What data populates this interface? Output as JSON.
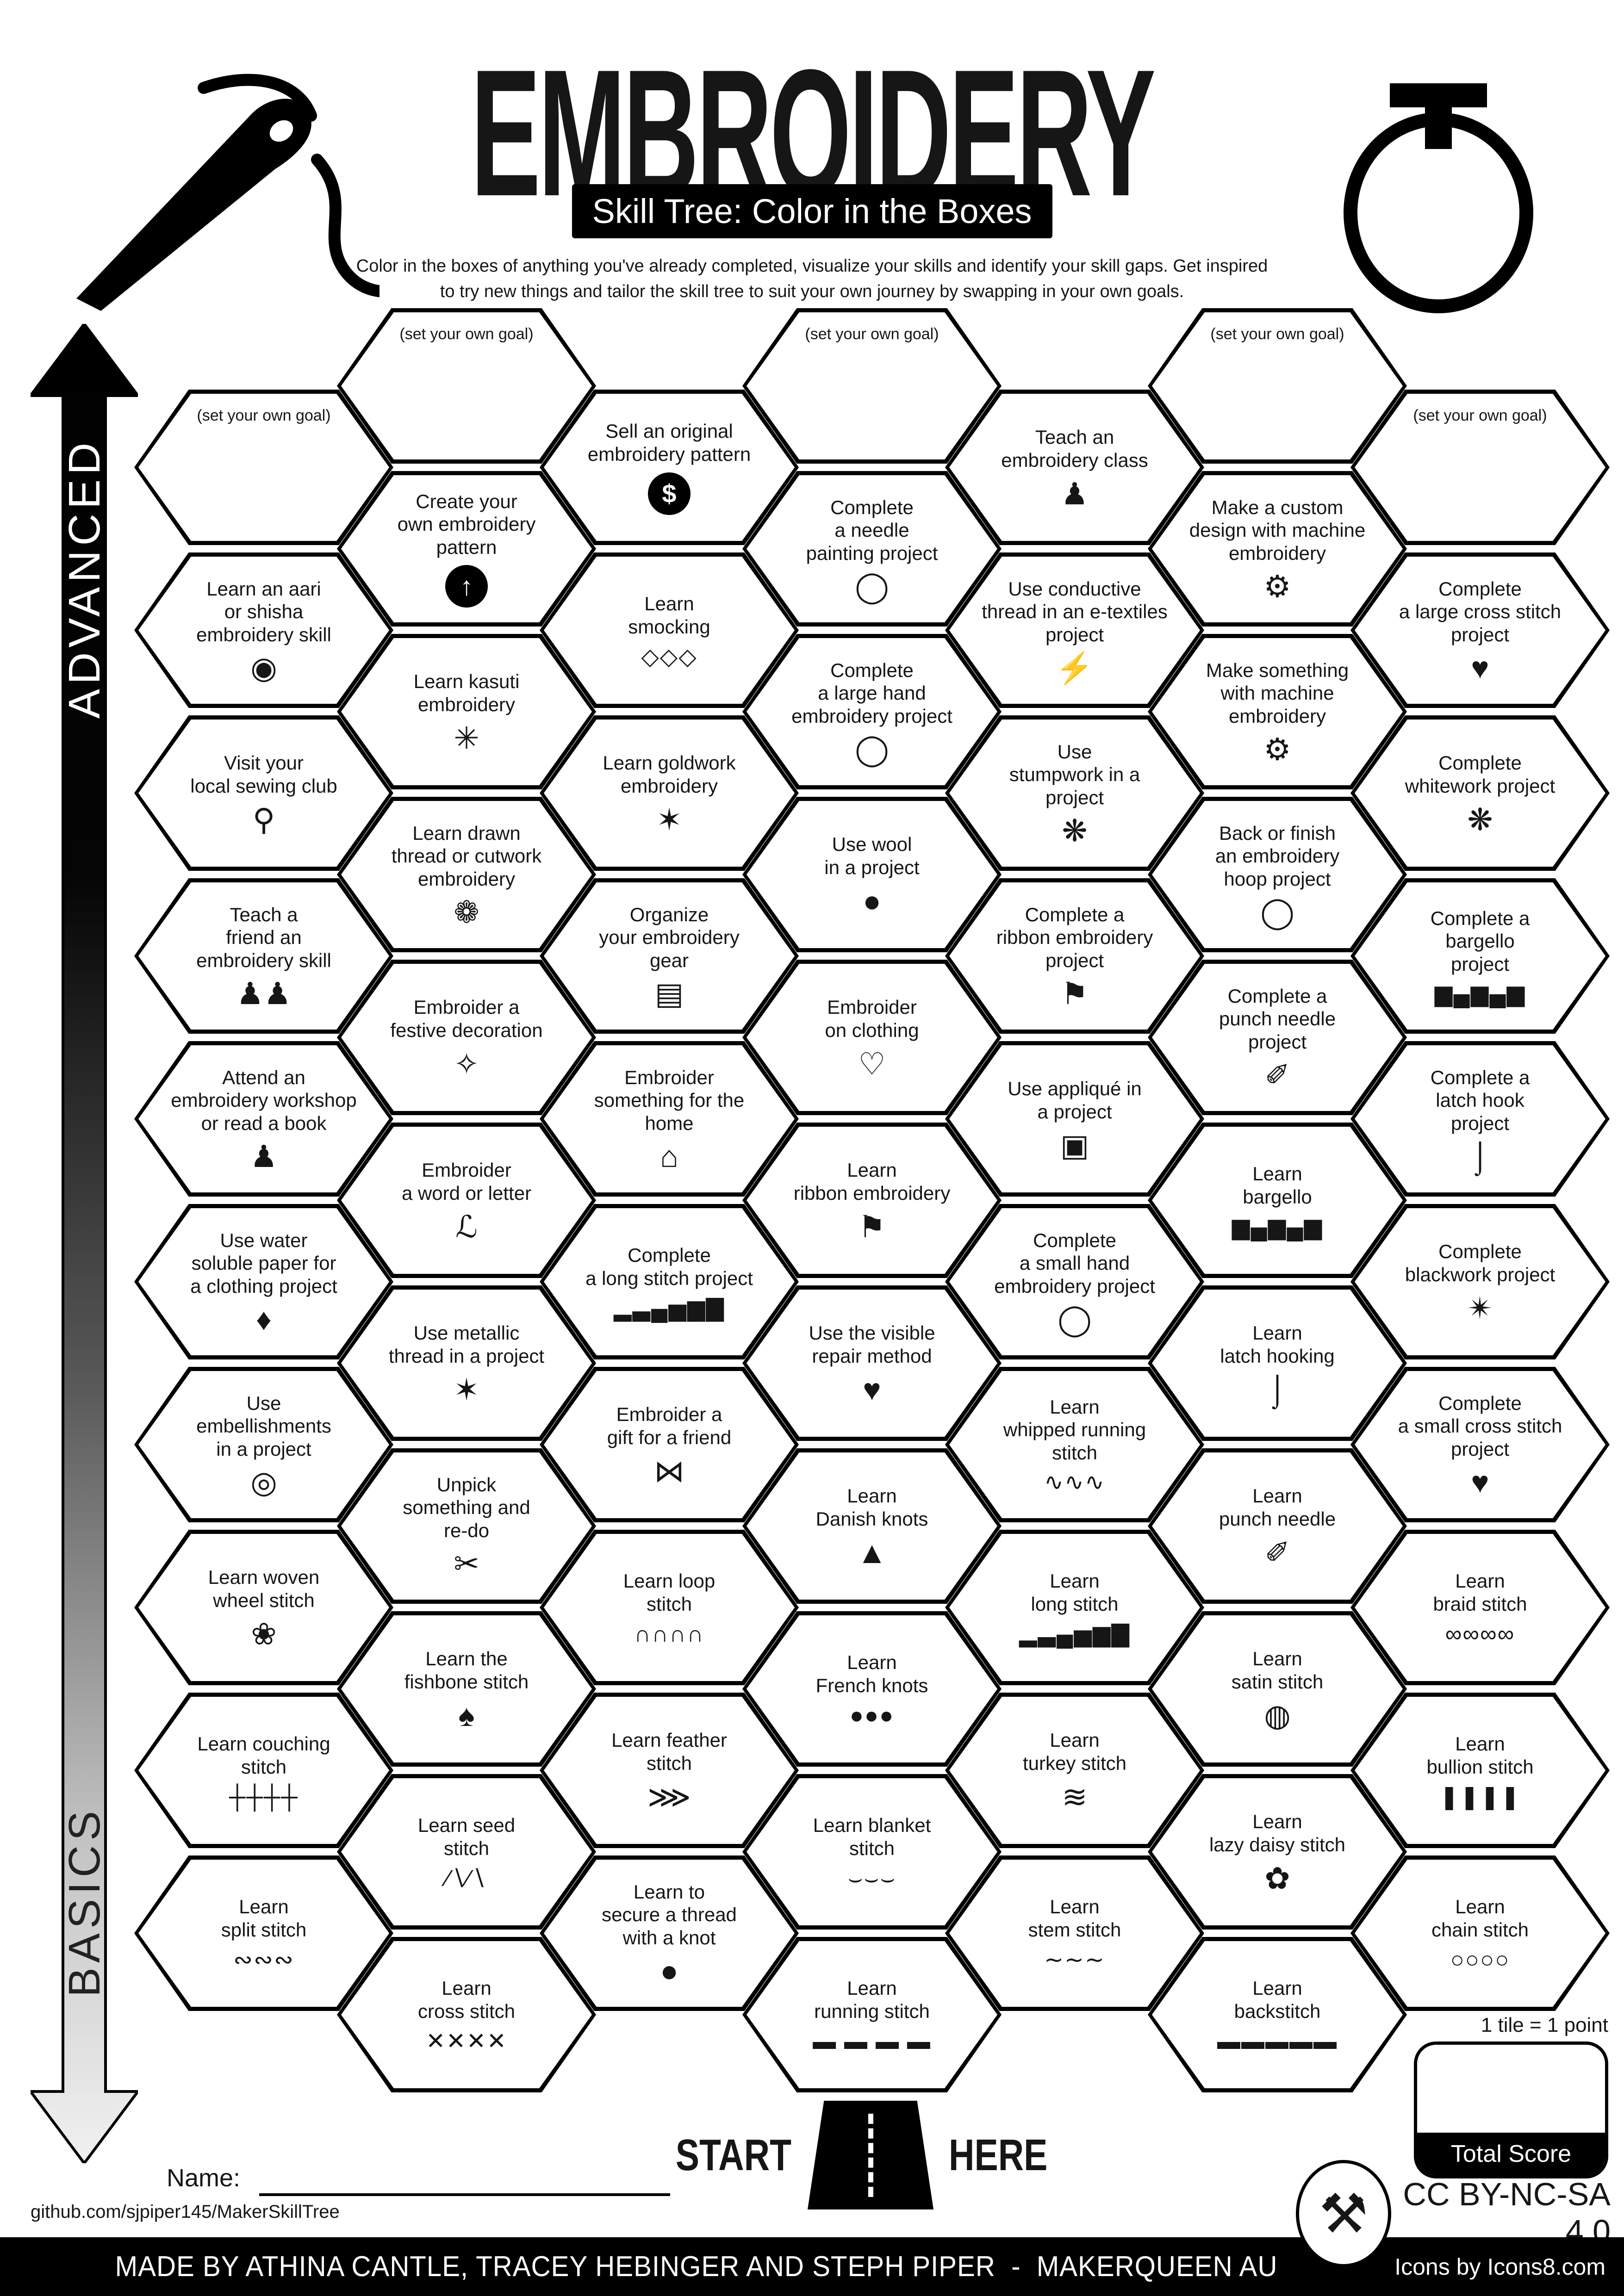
{
  "header": {
    "title": "EMBROIDERY",
    "subtitle": "Skill Tree: Color in the Boxes",
    "description": "Color in the boxes of anything you've already completed, visualize your skills and identify your skill gaps.  Get inspired\nto try new things and tailor the skill tree to suit your own journey by swapping in your own goals."
  },
  "axis": {
    "advanced": "ADVANCED",
    "basics": "BASICS"
  },
  "grid": {
    "goal_label": "(set your own goal)",
    "hexes": [
      {
        "col": 0,
        "row": 0,
        "label": "(set your own goal)",
        "icon": null
      },
      {
        "col": 0,
        "row": 1,
        "label": "Learn an aari\nor shisha\nembroidery skill",
        "icon": "shisha-mirror-icon"
      },
      {
        "col": 0,
        "row": 2,
        "label": "Visit your\nlocal sewing club",
        "icon": "map-pin-icon"
      },
      {
        "col": 0,
        "row": 3,
        "label": "Teach a\nfriend an\nembroidery skill",
        "icon": "friends-teaching-icon"
      },
      {
        "col": 0,
        "row": 4,
        "label": "Attend an\nembroidery workshop\nor read a book",
        "icon": "presenter-icon"
      },
      {
        "col": 0,
        "row": 5,
        "label": "Use water\nsoluble paper for\na clothing project",
        "icon": "water-drop-icon"
      },
      {
        "col": 0,
        "row": 6,
        "label": "Use\nembellishments\nin a project",
        "icon": "button-icon"
      },
      {
        "col": 0,
        "row": 7,
        "label": "Learn woven\nwheel stitch",
        "icon": "rose-icon"
      },
      {
        "col": 0,
        "row": 8,
        "label": "Learn couching\nstitch",
        "icon": "couching-stitch-icon"
      },
      {
        "col": 0,
        "row": 9,
        "label": "Learn\nsplit stitch",
        "icon": "split-stitch-icon"
      },
      {
        "col": 1,
        "row": 0,
        "label": "(set your own goal)",
        "icon": null
      },
      {
        "col": 1,
        "row": 1,
        "label": "Create your\nown embroidery\npattern",
        "icon": "arrow-up-circle-icon"
      },
      {
        "col": 1,
        "row": 2,
        "label": "Learn kasuti\nembroidery",
        "icon": "kasuti-motif-icon"
      },
      {
        "col": 1,
        "row": 3,
        "label": "Learn drawn\nthread or cutwork\nembroidery",
        "icon": "cutwork-motif-icon"
      },
      {
        "col": 1,
        "row": 4,
        "label": "Embroider a\nfestive decoration",
        "icon": "ornament-swirl-icon"
      },
      {
        "col": 1,
        "row": 5,
        "label": "Embroider\na word or letter",
        "icon": "script-letter-icon"
      },
      {
        "col": 1,
        "row": 6,
        "label": "Use metallic\nthread in a project",
        "icon": "metallic-thread-icon"
      },
      {
        "col": 1,
        "row": 7,
        "label": "Unpick\nsomething and\nre-do",
        "icon": "seam-ripper-icon"
      },
      {
        "col": 1,
        "row": 8,
        "label": "Learn the\nfishbone stitch",
        "icon": "fishbone-leaf-icon"
      },
      {
        "col": 1,
        "row": 9,
        "label": "Learn seed\nstitch",
        "icon": "seed-stitch-icon"
      },
      {
        "col": 1,
        "row": 10,
        "label": "Learn\ncross stitch",
        "icon": "cross-stitch-icon"
      },
      {
        "col": 2,
        "row": 0,
        "label": "Sell an original\nembroidery pattern",
        "icon": "dollar-circle-icon"
      },
      {
        "col": 2,
        "row": 1,
        "label": "Learn\nsmocking",
        "icon": "smocking-lattice-icon"
      },
      {
        "col": 2,
        "row": 2,
        "label": "Learn goldwork\nembroidery",
        "icon": "goldwork-needle-icon"
      },
      {
        "col": 2,
        "row": 3,
        "label": "Organize\nyour embroidery\ngear",
        "icon": "storage-drawer-icon"
      },
      {
        "col": 2,
        "row": 4,
        "label": "Embroider\nsomething for the\nhome",
        "icon": "house-icon"
      },
      {
        "col": 2,
        "row": 5,
        "label": "Complete\na long stitch project",
        "icon": "long-stitch-icon"
      },
      {
        "col": 2,
        "row": 6,
        "label": "Embroider a\ngift for a friend",
        "icon": "gift-bow-icon"
      },
      {
        "col": 2,
        "row": 7,
        "label": "Learn loop\nstitch",
        "icon": "loop-stitch-icon"
      },
      {
        "col": 2,
        "row": 8,
        "label": "Learn feather\nstitch",
        "icon": "feather-stitch-icon"
      },
      {
        "col": 2,
        "row": 9,
        "label": "Learn to\nsecure a thread\nwith a knot",
        "icon": "knot-dot-icon"
      },
      {
        "col": 3,
        "row": 0,
        "label": "(set your own goal)",
        "icon": null
      },
      {
        "col": 3,
        "row": 1,
        "label": "Complete\na needle\npainting project",
        "icon": "hoop-needle-icon"
      },
      {
        "col": 3,
        "row": 2,
        "label": "Complete\na large hand\nembroidery project",
        "icon": "hoop-needle-icon"
      },
      {
        "col": 3,
        "row": 3,
        "label": "Use wool\nin a project",
        "icon": "yarn-ball-icon"
      },
      {
        "col": 3,
        "row": 4,
        "label": "Embroider\non clothing",
        "icon": "tshirt-heart-icon"
      },
      {
        "col": 3,
        "row": 5,
        "label": "Learn\nribbon embroidery",
        "icon": "ribbon-bookmark-icon"
      },
      {
        "col": 3,
        "row": 6,
        "label": "Use the visible\nrepair method",
        "icon": "mended-heart-icon"
      },
      {
        "col": 3,
        "row": 7,
        "label": "Learn\nDanish knots",
        "icon": "danish-knot-icon"
      },
      {
        "col": 3,
        "row": 8,
        "label": "Learn\nFrench knots",
        "icon": "french-knots-icon"
      },
      {
        "col": 3,
        "row": 9,
        "label": "Learn blanket\nstitch",
        "icon": "blanket-stitch-icon"
      },
      {
        "col": 3,
        "row": 10,
        "label": "Learn\nrunning stitch",
        "icon": "running-stitch-icon"
      },
      {
        "col": 4,
        "row": 0,
        "label": "Teach an\nembroidery class",
        "icon": "presenter-icon"
      },
      {
        "col": 4,
        "row": 1,
        "label": "Use conductive\nthread in an e-textiles\nproject",
        "icon": "led-icon"
      },
      {
        "col": 4,
        "row": 2,
        "label": "Use\nstumpwork in a\nproject",
        "icon": "bee-icon"
      },
      {
        "col": 4,
        "row": 3,
        "label": "Complete a\nribbon embroidery\nproject",
        "icon": "ribbon-bookmark-icon"
      },
      {
        "col": 4,
        "row": 4,
        "label": "Use appliqué in\na project",
        "icon": "applique-patch-icon"
      },
      {
        "col": 4,
        "row": 5,
        "label": "Complete\na small hand\nembroidery project",
        "icon": "hoop-needle-icon"
      },
      {
        "col": 4,
        "row": 6,
        "label": "Learn\nwhipped running\nstitch",
        "icon": "whipped-running-stitch-icon"
      },
      {
        "col": 4,
        "row": 7,
        "label": "Learn\nlong stitch",
        "icon": "long-stitch-icon"
      },
      {
        "col": 4,
        "row": 8,
        "label": "Learn\nturkey stitch",
        "icon": "turkey-stitch-icon"
      },
      {
        "col": 4,
        "row": 9,
        "label": "Learn\nstem stitch",
        "icon": "stem-stitch-icon"
      },
      {
        "col": 5,
        "row": 0,
        "label": "(set your own goal)",
        "icon": null
      },
      {
        "col": 5,
        "row": 1,
        "label": "Make a custom\ndesign with machine\nembroidery",
        "icon": "sewing-machine-icon"
      },
      {
        "col": 5,
        "row": 2,
        "label": "Make something\nwith machine\nembroidery",
        "icon": "sewing-machine-icon"
      },
      {
        "col": 5,
        "row": 3,
        "label": "Back or finish\nan embroidery\nhoop project",
        "icon": "hoop-needle-icon"
      },
      {
        "col": 5,
        "row": 4,
        "label": "Complete a\npunch needle\nproject",
        "icon": "punch-needle-icon"
      },
      {
        "col": 5,
        "row": 5,
        "label": "Learn\nbargello",
        "icon": "bargello-pattern-icon"
      },
      {
        "col": 5,
        "row": 6,
        "label": "Learn\nlatch hooking",
        "icon": "latch-hook-icon"
      },
      {
        "col": 5,
        "row": 7,
        "label": "Learn\npunch needle",
        "icon": "punch-needle-icon"
      },
      {
        "col": 5,
        "row": 8,
        "label": "Learn\nsatin stitch",
        "icon": "satin-stitch-icon"
      },
      {
        "col": 5,
        "row": 9,
        "label": "Learn\nlazy daisy stitch",
        "icon": "daisy-icon"
      },
      {
        "col": 5,
        "row": 10,
        "label": "Learn\nbackstitch",
        "icon": "backstitch-icon"
      },
      {
        "col": 6,
        "row": 0,
        "label": "(set your own goal)",
        "icon": null
      },
      {
        "col": 6,
        "row": 1,
        "label": "Complete\na large cross stitch\nproject",
        "icon": "cross-stitch-heart-icon"
      },
      {
        "col": 6,
        "row": 2,
        "label": "Complete\nwhitework project",
        "icon": "bee-icon"
      },
      {
        "col": 6,
        "row": 3,
        "label": "Complete a\nbargello\nproject",
        "icon": "bargello-pattern-icon"
      },
      {
        "col": 6,
        "row": 4,
        "label": "Complete a\nlatch hook\nproject",
        "icon": "latch-hook-icon"
      },
      {
        "col": 6,
        "row": 5,
        "label": "Complete\nblackwork project",
        "icon": "blackwork-star-icon"
      },
      {
        "col": 6,
        "row": 6,
        "label": "Complete\na small cross stitch\nproject",
        "icon": "cross-stitch-heart-icon"
      },
      {
        "col": 6,
        "row": 7,
        "label": "Learn\nbraid stitch",
        "icon": "braid-stitch-icon"
      },
      {
        "col": 6,
        "row": 8,
        "label": "Learn\nbullion stitch",
        "icon": "bullion-stitch-icon"
      },
      {
        "col": 6,
        "row": 9,
        "label": "Learn\nchain stitch",
        "icon": "chain-stitch-icon"
      }
    ]
  },
  "footer": {
    "start_label": "START",
    "here_label": "HERE",
    "tile_point": "1 tile = 1 point",
    "total_score": "Total Score",
    "name_label": "Name:",
    "github": "github.com/sjpiper145/MakerSkillTree",
    "license": "CC BY-NC-SA 4.0",
    "credit": "MADE BY ATHINA CANTLE, TRACEY HEBINGER AND STEPH PIPER  -  MAKERQUEEN AU",
    "icons_credit": "Icons by Icons8.com"
  },
  "icon_glyphs": {
    "shisha-mirror-icon": "◉",
    "map-pin-icon": "⚲",
    "friends-teaching-icon": "♟♟",
    "presenter-icon": "♟",
    "water-drop-icon": "♦",
    "button-icon": "◎",
    "rose-icon": "❀",
    "couching-stitch-icon": "┼┼┼┼",
    "split-stitch-icon": "∾∾∾",
    "arrow-up-circle-icon": "↑",
    "kasuti-motif-icon": "✳",
    "cutwork-motif-icon": "❁",
    "ornament-swirl-icon": "✧",
    "script-letter-icon": "ℒ",
    "metallic-thread-icon": "✶",
    "seam-ripper-icon": "✂",
    "fishbone-leaf-icon": "♠",
    "seed-stitch-icon": "∕∖∕∖",
    "cross-stitch-icon": "✕✕✕✕",
    "dollar-circle-icon": "$",
    "smocking-lattice-icon": "◇◇◇",
    "goldwork-needle-icon": "✶",
    "storage-drawer-icon": "▤",
    "house-icon": "⌂",
    "long-stitch-icon": "▂▃▄▅▆▇",
    "gift-bow-icon": "⋈",
    "loop-stitch-icon": "∩∩∩∩",
    "feather-stitch-icon": "⋙",
    "knot-dot-icon": "●",
    "hoop-needle-icon": "◯",
    "yarn-ball-icon": "●",
    "tshirt-heart-icon": "♡",
    "ribbon-bookmark-icon": "⚑",
    "mended-heart-icon": "♥",
    "danish-knot-icon": "▲",
    "french-knots-icon": "●●●",
    "blanket-stitch-icon": "⌣⌣⌣",
    "running-stitch-icon": "▬ ▬ ▬ ▬",
    "led-icon": "⚡",
    "bee-icon": "❋",
    "applique-patch-icon": "▣",
    "whipped-running-stitch-icon": "∿∿∿",
    "turkey-stitch-icon": "≋",
    "stem-stitch-icon": "∼∼∼",
    "sewing-machine-icon": "⚙",
    "punch-needle-icon": "✐",
    "bargello-pattern-icon": "▆▄▆▄▆",
    "latch-hook-icon": "⌡",
    "satin-stitch-icon": "◍",
    "daisy-icon": "✿",
    "backstitch-icon": "▬▬▬▬▬",
    "cross-stitch-heart-icon": "♥",
    "blackwork-star-icon": "✴",
    "braid-stitch-icon": "∞∞∞∞",
    "bullion-stitch-icon": "❚❚❚❚",
    "chain-stitch-icon": "○○○○",
    "maker-tools-icon": "⚒"
  }
}
